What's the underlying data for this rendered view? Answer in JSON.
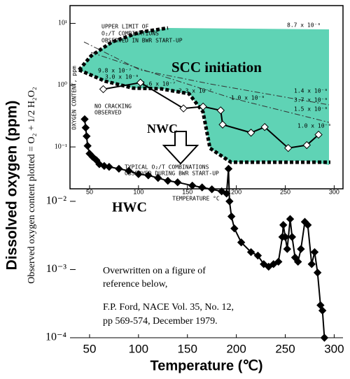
{
  "chart_data": [
    {
      "type": "line",
      "title": "HWC",
      "ylabel": "Dissolved oxygen (ppm)",
      "ylabel2": "Observed oxygen content plotted = O₂ + 1/2 H₂O₂",
      "xlabel": "Temperature (℃)",
      "log_y": true,
      "xlim": [
        30,
        309
      ],
      "ylim": [
        0.0001,
        7.4
      ],
      "xticks": [
        50,
        100,
        150,
        200,
        250,
        300
      ],
      "yticks": [
        {
          "value": 0.0001,
          "label": "10⁻⁴"
        },
        {
          "value": 0.001,
          "label": "10⁻³"
        },
        {
          "value": 0.01,
          "label": "10⁻²"
        }
      ],
      "color": "#000000",
      "x": [
        45,
        46,
        47,
        48,
        50,
        53,
        57,
        60,
        65,
        70,
        80,
        90,
        100,
        110,
        120,
        130,
        140,
        155,
        165,
        175,
        185,
        190,
        192,
        193,
        195,
        198,
        205,
        215,
        222,
        228,
        233,
        238,
        243,
        247,
        248,
        250,
        252,
        255,
        257,
        260,
        263,
        266,
        270,
        273,
        277,
        280,
        283,
        286,
        288,
        290
      ],
      "values": [
        0.16,
        0.12,
        0.09,
        0.065,
        0.05,
        0.045,
        0.04,
        0.035,
        0.033,
        0.032,
        0.03,
        0.028,
        0.025,
        0.024,
        0.022,
        0.02,
        0.019,
        0.017,
        0.016,
        0.015,
        0.014,
        0.013,
        0.03,
        0.01,
        0.006,
        0.004,
        0.0025,
        0.0018,
        0.0016,
        0.0012,
        0.0011,
        0.0012,
        0.0013,
        0.003,
        0.0045,
        0.003,
        0.002,
        0.0055,
        0.003,
        0.0015,
        0.0013,
        0.002,
        0.005,
        0.0045,
        0.0012,
        0.0018,
        0.0009,
        0.0003,
        0.00025,
        0.0001
      ],
      "annotations": [
        "Overwritten on a figure of",
        "reference below,",
        "F.P. Ford, NACE Vol. 35, No. 12,",
        "pp 569-574, December 1979."
      ]
    },
    {
      "type": "line",
      "xlabel": "TEMPERATURE °C",
      "ylabel": "OXYGEN CONTENT, ppm",
      "log_y": true,
      "xlim": [
        30,
        309
      ],
      "ylim": [
        0.021,
        19.4
      ],
      "xticks": [
        50,
        100,
        150,
        200,
        250,
        300
      ],
      "yticks": [
        {
          "value": 10,
          "label": "10¹"
        },
        {
          "value": 1,
          "label": "10⁰"
        },
        {
          "value": 0.1,
          "label": "10⁻¹"
        }
      ],
      "color": "#000000",
      "marker_fill": "#ffffff",
      "region_color": "#5fd3b5",
      "x": [
        64,
        102,
        146,
        166,
        184,
        186,
        215,
        229,
        253,
        272,
        284
      ],
      "values": [
        0.86,
        1.1,
        0.42,
        0.45,
        0.39,
        0.23,
        0.17,
        0.21,
        0.096,
        0.107,
        0.158
      ],
      "annotations": [
        "UPPER LIMIT OF",
        "O₂/T COMBINATIONS",
        "OBSERVED IN BWR START-UP",
        "SCC initiation",
        "NO CRACKING",
        "OBSERVED",
        "NWC",
        "TYPICAL O₂/T COMBINATIONS",
        "OBSERVED DURING BWR START-UP",
        "8.7 x 10⁻⁶",
        "9.8 x 10⁻⁷",
        "3.0 x 10⁻⁶",
        "1.6 x 10⁻⁷",
        "2.3 x 10⁻⁷",
        "1.0 x 10⁻⁶",
        "1.4 x 10⁻⁶",
        "3.7 x 10⁻⁶",
        "1.5 x 10⁻⁶",
        "1.0 x 10⁻⁶"
      ]
    }
  ]
}
